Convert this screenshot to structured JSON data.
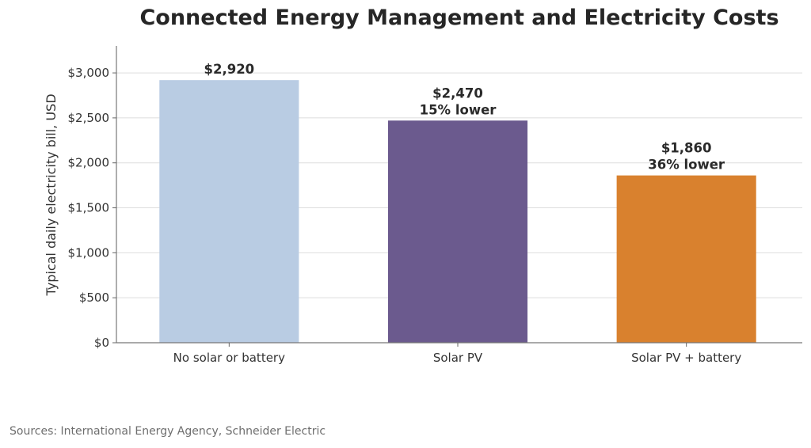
{
  "chart_data": {
    "type": "bar",
    "title": "Connected Energy Management and Electricity Costs",
    "xlabel": "",
    "ylabel": "Typical daily electricity bill, USD",
    "categories": [
      "No solar or battery",
      "Solar PV",
      "Solar PV + battery"
    ],
    "values": [
      2920,
      2470,
      1860
    ],
    "colors": [
      "#b9cce3",
      "#6b5a8e",
      "#d9812e"
    ],
    "value_labels": [
      "$2,920",
      "$2,470",
      "$1,860"
    ],
    "annotations": [
      "",
      "15% lower",
      "36% lower"
    ],
    "ylim": [
      0,
      3300
    ],
    "yticks": [
      0,
      500,
      1000,
      1500,
      2000,
      2500,
      3000
    ],
    "ytick_labels": [
      "$0",
      "$500",
      "$1,000",
      "$1,500",
      "$2,000",
      "$2,500",
      "$3,000"
    ],
    "grid": "horizontal",
    "source": "Sources: International Energy Agency, Schneider Electric"
  }
}
